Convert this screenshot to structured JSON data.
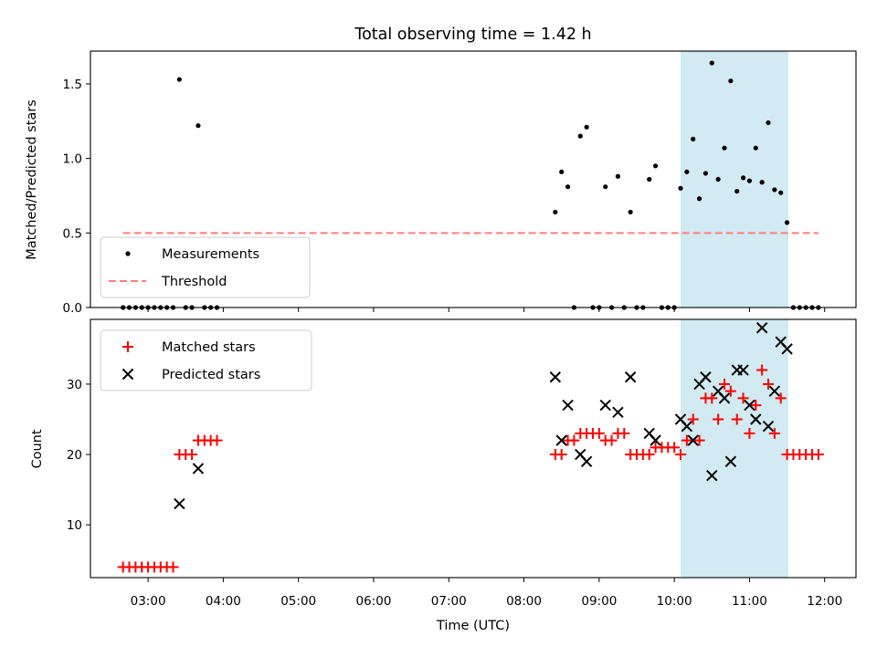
{
  "figure": {
    "title": "Total observing time = 1.42 h",
    "xlabel": "Time (UTC)"
  },
  "colors": {
    "measurement": "#000000",
    "threshold": "#ff7f7f",
    "matched": "#ff0000",
    "predicted": "#000000",
    "highlight": "#add8e6"
  },
  "chart_data": [
    {
      "type": "scatter",
      "ylabel": "Matched/Predicted stars",
      "ylim": [
        0,
        1.72
      ],
      "yticks": [
        "0.0",
        "0.5",
        "1.0",
        "1.5"
      ],
      "xlim": [
        "02:14",
        "12:25"
      ],
      "highlight_span": [
        "10:05",
        "11:31"
      ],
      "legend": {
        "placement": "lower-left",
        "entries": [
          "Measurements",
          "Threshold"
        ]
      },
      "threshold": {
        "name": "Threshold",
        "value": 0.5,
        "x": [
          "02:40",
          "11:55"
        ]
      },
      "series": [
        {
          "name": "Measurements",
          "points": [
            [
              "02:40",
              0
            ],
            [
              "02:45",
              0
            ],
            [
              "02:50",
              0
            ],
            [
              "02:55",
              0
            ],
            [
              "03:00",
              0
            ],
            [
              "03:05",
              0
            ],
            [
              "03:10",
              0
            ],
            [
              "03:15",
              0
            ],
            [
              "03:20",
              0
            ],
            [
              "03:25",
              1.53
            ],
            [
              "03:30",
              0
            ],
            [
              "03:35",
              0
            ],
            [
              "03:40",
              1.22
            ],
            [
              "03:45",
              0
            ],
            [
              "03:50",
              0
            ],
            [
              "03:55",
              0
            ],
            [
              "08:25",
              0.64
            ],
            [
              "08:30",
              0.91
            ],
            [
              "08:35",
              0.81
            ],
            [
              "08:40",
              0
            ],
            [
              "08:45",
              1.15
            ],
            [
              "08:50",
              1.21
            ],
            [
              "08:55",
              0
            ],
            [
              "09:00",
              0
            ],
            [
              "09:05",
              0.81
            ],
            [
              "09:10",
              0
            ],
            [
              "09:15",
              0.88
            ],
            [
              "09:20",
              0
            ],
            [
              "09:25",
              0.64
            ],
            [
              "09:30",
              0
            ],
            [
              "09:35",
              0
            ],
            [
              "09:40",
              0.86
            ],
            [
              "09:45",
              0.95
            ],
            [
              "09:50",
              0
            ],
            [
              "09:55",
              0
            ],
            [
              "10:00",
              0
            ],
            [
              "10:05",
              0.8
            ],
            [
              "10:10",
              0.91
            ],
            [
              "10:15",
              1.13
            ],
            [
              "10:20",
              0.73
            ],
            [
              "10:25",
              0.9
            ],
            [
              "10:30",
              1.64
            ],
            [
              "10:35",
              0.86
            ],
            [
              "10:40",
              1.07
            ],
            [
              "10:45",
              1.52
            ],
            [
              "10:50",
              0.78
            ],
            [
              "10:55",
              0.87
            ],
            [
              "11:00",
              0.85
            ],
            [
              "11:05",
              1.07
            ],
            [
              "11:10",
              0.84
            ],
            [
              "11:15",
              1.24
            ],
            [
              "11:20",
              0.79
            ],
            [
              "11:25",
              0.77
            ],
            [
              "11:30",
              0.57
            ],
            [
              "11:35",
              0
            ],
            [
              "11:40",
              0
            ],
            [
              "11:45",
              0
            ],
            [
              "11:50",
              0
            ],
            [
              "11:55",
              0
            ]
          ]
        }
      ]
    },
    {
      "type": "scatter",
      "ylabel": "Count",
      "ylim": [
        2.5,
        39.2
      ],
      "yticks": [
        "10",
        "20",
        "30"
      ],
      "xlim": [
        "02:14",
        "12:25"
      ],
      "xticks": [
        "03:00",
        "04:00",
        "05:00",
        "06:00",
        "07:00",
        "08:00",
        "09:00",
        "10:00",
        "11:00",
        "12:00"
      ],
      "highlight_span": [
        "10:05",
        "11:31"
      ],
      "legend": {
        "placement": "upper-left",
        "entries": [
          "Matched stars",
          "Predicted stars"
        ]
      },
      "series": [
        {
          "name": "Matched stars",
          "marker": "plus",
          "points": [
            [
              "02:40",
              4
            ],
            [
              "02:45",
              4
            ],
            [
              "02:50",
              4
            ],
            [
              "02:55",
              4
            ],
            [
              "03:00",
              4
            ],
            [
              "03:05",
              4
            ],
            [
              "03:10",
              4
            ],
            [
              "03:15",
              4
            ],
            [
              "03:20",
              4
            ],
            [
              "03:25",
              20
            ],
            [
              "03:30",
              20
            ],
            [
              "03:35",
              20
            ],
            [
              "03:40",
              22
            ],
            [
              "03:45",
              22
            ],
            [
              "03:50",
              22
            ],
            [
              "03:55",
              22
            ],
            [
              "08:25",
              20
            ],
            [
              "08:30",
              20
            ],
            [
              "08:35",
              22
            ],
            [
              "08:40",
              22
            ],
            [
              "08:45",
              23
            ],
            [
              "08:50",
              23
            ],
            [
              "08:55",
              23
            ],
            [
              "09:00",
              23
            ],
            [
              "09:05",
              22
            ],
            [
              "09:10",
              22
            ],
            [
              "09:15",
              23
            ],
            [
              "09:20",
              23
            ],
            [
              "09:25",
              20
            ],
            [
              "09:30",
              20
            ],
            [
              "09:35",
              20
            ],
            [
              "09:40",
              20
            ],
            [
              "09:45",
              21
            ],
            [
              "09:50",
              21
            ],
            [
              "09:55",
              21
            ],
            [
              "10:00",
              21
            ],
            [
              "10:05",
              20
            ],
            [
              "10:10",
              22
            ],
            [
              "10:15",
              25
            ],
            [
              "10:20",
              22
            ],
            [
              "10:25",
              28
            ],
            [
              "10:30",
              28
            ],
            [
              "10:35",
              25
            ],
            [
              "10:40",
              30
            ],
            [
              "10:45",
              29
            ],
            [
              "10:50",
              25
            ],
            [
              "10:55",
              28
            ],
            [
              "11:00",
              23
            ],
            [
              "11:05",
              27
            ],
            [
              "11:10",
              32
            ],
            [
              "11:15",
              30
            ],
            [
              "11:20",
              23
            ],
            [
              "11:25",
              28
            ],
            [
              "11:30",
              20
            ],
            [
              "11:35",
              20
            ],
            [
              "11:40",
              20
            ],
            [
              "11:45",
              20
            ],
            [
              "11:50",
              20
            ],
            [
              "11:55",
              20
            ]
          ]
        },
        {
          "name": "Predicted stars",
          "marker": "x",
          "points": [
            [
              "03:25",
              13
            ],
            [
              "03:40",
              18
            ],
            [
              "08:25",
              31
            ],
            [
              "08:30",
              22
            ],
            [
              "08:35",
              27
            ],
            [
              "08:45",
              20
            ],
            [
              "08:50",
              19
            ],
            [
              "09:05",
              27
            ],
            [
              "09:15",
              26
            ],
            [
              "09:25",
              31
            ],
            [
              "09:40",
              23
            ],
            [
              "09:45",
              22
            ],
            [
              "10:05",
              25
            ],
            [
              "10:10",
              24
            ],
            [
              "10:15",
              22
            ],
            [
              "10:20",
              30
            ],
            [
              "10:25",
              31
            ],
            [
              "10:30",
              17
            ],
            [
              "10:35",
              29
            ],
            [
              "10:40",
              28
            ],
            [
              "10:45",
              19
            ],
            [
              "10:50",
              32
            ],
            [
              "10:55",
              32
            ],
            [
              "11:00",
              27
            ],
            [
              "11:05",
              25
            ],
            [
              "11:10",
              38
            ],
            [
              "11:15",
              24
            ],
            [
              "11:20",
              29
            ],
            [
              "11:25",
              36
            ],
            [
              "11:30",
              35
            ]
          ]
        }
      ]
    }
  ]
}
